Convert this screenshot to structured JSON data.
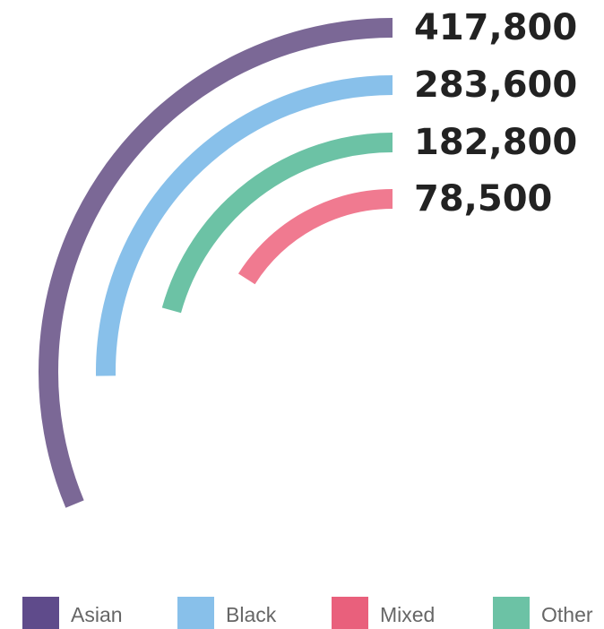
{
  "chart_data": {
    "type": "radial-bar",
    "categories": [
      "Asian",
      "Black",
      "Mixed",
      "Other"
    ],
    "values": [
      417800,
      283600,
      78500,
      182800
    ],
    "value_labels": [
      "417,800",
      "283,600",
      "78,500",
      "182,800"
    ],
    "colors": [
      "#7b6896",
      "#88c0ea",
      "#f07a90",
      "#6cc2a5"
    ],
    "legend_colors": [
      "#5f4b8b",
      "#88c0ea",
      "#e9607c",
      "#6cc2a5"
    ],
    "legend": "bottom"
  }
}
